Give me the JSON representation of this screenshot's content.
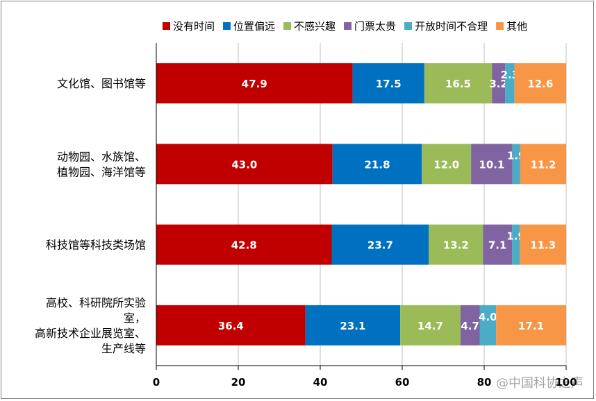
{
  "chart_data": {
    "type": "bar",
    "orientation": "horizontal",
    "stacked": true,
    "categories": [
      [
        "文化馆、图书馆等"
      ],
      [
        "动物园、水族馆、",
        "植物园、海洋馆等"
      ],
      [
        "科技馆等科技类场馆"
      ],
      [
        "高校、科研院所实验",
        "室，",
        "高新技术企业展览室、",
        "生产线等"
      ]
    ],
    "series": [
      {
        "name": "没有时间",
        "color": "#c00000",
        "values": [
          47.9,
          43.0,
          42.8,
          36.4
        ]
      },
      {
        "name": "位置偏远",
        "color": "#0070c0",
        "values": [
          17.5,
          21.8,
          23.7,
          23.1
        ]
      },
      {
        "name": "不感兴趣",
        "color": "#9bbb59",
        "values": [
          16.5,
          12.0,
          13.2,
          14.7
        ]
      },
      {
        "name": "门票太贵",
        "color": "#8064a2",
        "values": [
          3.2,
          10.1,
          7.1,
          4.7
        ]
      },
      {
        "name": "开放时间不合理",
        "color": "#4bacc6",
        "values": [
          2.3,
          1.9,
          1.9,
          4.0
        ]
      },
      {
        "name": "其他",
        "color": "#f79646",
        "values": [
          12.6,
          11.2,
          11.3,
          17.1
        ]
      }
    ],
    "value_labels": [
      [
        "47.9",
        "17.5",
        "16.5",
        "3.2",
        "2.3",
        "12.6"
      ],
      [
        "43.0",
        "21.8",
        "12.0",
        "10.1",
        "1.9",
        "11.2"
      ],
      [
        "42.8",
        "23.7",
        "13.2",
        "7.1",
        "1.9",
        "11.3"
      ],
      [
        "36.4",
        "23.1",
        "14.7",
        "4.7",
        "4.0",
        "17.1"
      ]
    ],
    "xlim": [
      0,
      100
    ],
    "xticks": [
      "0",
      "20",
      "40",
      "60",
      "80",
      "100"
    ],
    "xtick_values": [
      0,
      20,
      40,
      60,
      80,
      100
    ],
    "grid": true,
    "legend_position": "top"
  },
  "watermark": "@中国科协之声"
}
